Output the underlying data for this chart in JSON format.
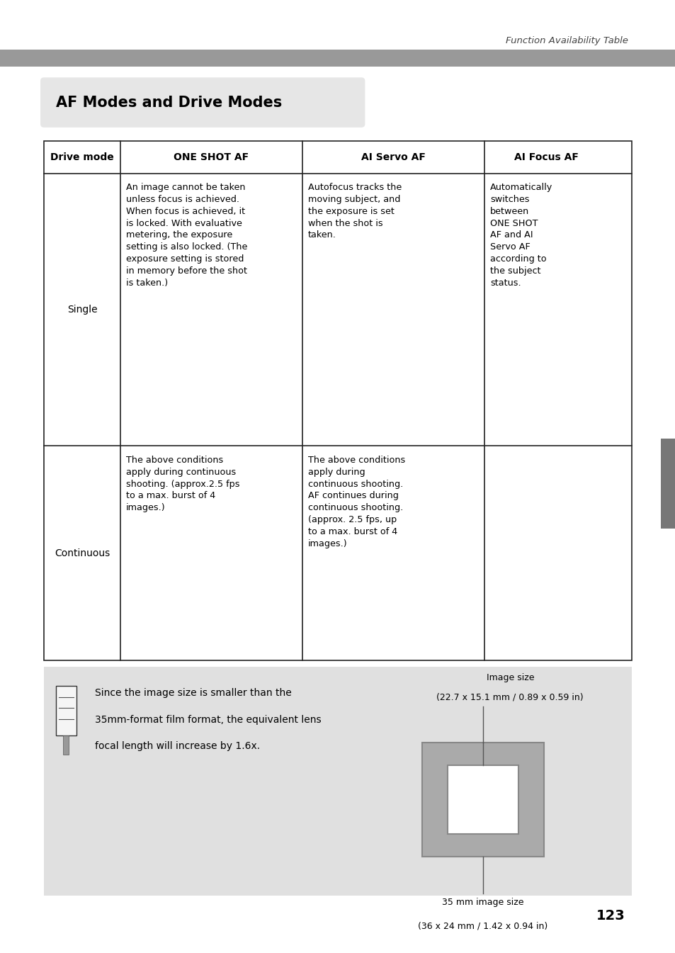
{
  "page_width": 9.54,
  "page_height": 13.45,
  "bg_color": "#ffffff",
  "header_text": "Function Availability Table",
  "header_bar_color": "#999999",
  "title_text": "AF Modes and Drive Modes",
  "title_bg_color": "#e6e6e6",
  "title_font_size": 15,
  "table_header_row": [
    "Drive mode",
    "ONE SHOT AF",
    "AI Servo AF",
    "AI Focus AF"
  ],
  "table_row1_label": "Single",
  "table_row2_label": "Continuous",
  "cell_one_shot_single": "An image cannot be taken\nunless focus is achieved.\nWhen focus is achieved, it\nis locked. With evaluative\nmetering, the exposure\nsetting is also locked. (The\nexposure setting is stored\nin memory before the shot\nis taken.)",
  "cell_ai_servo_single": "Autofocus tracks the\nmoving subject, and\nthe exposure is set\nwhen the shot is\ntaken.",
  "cell_ai_focus_single": "Automatically\nswitches\nbetween\nONE SHOT\nAF and AI\nServo AF\naccording to\nthe subject\nstatus.",
  "cell_one_shot_cont": "The above conditions\napply during continuous\nshooting. (approx.2.5 fps\nto a max. burst of 4\nimages.)",
  "cell_ai_servo_cont": "The above conditions\napply during\ncontinuous shooting.\nAF continues during\ncontinuous shooting.\n(approx. 2.5 fps, up\nto a max. burst of 4\nimages.)",
  "cell_ai_focus_cont": "",
  "note_bg_color": "#e0e0e0",
  "note_text_line1": "Since the image size is smaller than the",
  "note_text_line2": "35mm-format film format, the equivalent lens",
  "note_text_line3": "focal length will increase by 1.6x.",
  "note_img_label1": "Image size",
  "note_img_label2": "(22.7 x 15.1 mm / 0.89 x 0.59 in)",
  "note_img_label3": "35 mm image size",
  "note_img_label4": "(36 x 24 mm / 1.42 x 0.94 in)",
  "page_number": "123",
  "right_tab_color": "#777777"
}
